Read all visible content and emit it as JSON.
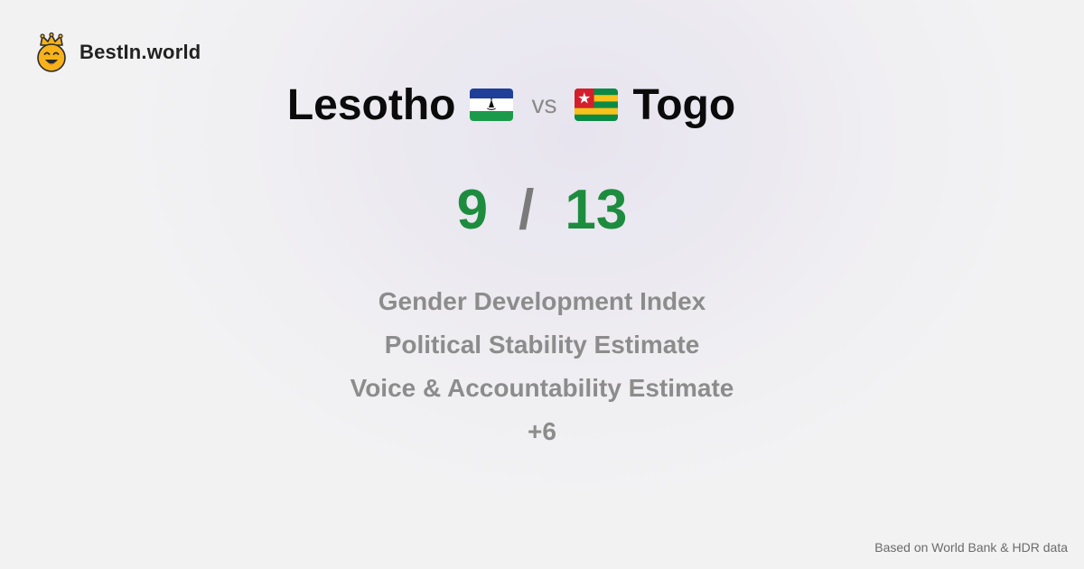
{
  "brand": {
    "name": "BestIn.world",
    "logo_icon": "smiling-face-crown-icon"
  },
  "comparison": {
    "left": {
      "name": "Lesotho",
      "flag_icon": "lesotho-flag-icon",
      "score": "9"
    },
    "vs_label": "vs",
    "right": {
      "name": "Togo",
      "flag_icon": "togo-flag-icon",
      "score": "13"
    },
    "separator": "/"
  },
  "metrics": [
    "Gender Development Index",
    "Political Stability Estimate",
    "Voice & Accountability Estimate",
    "+6"
  ],
  "footer": {
    "source": "Based on World Bank & HDR data"
  },
  "colors": {
    "score": "#1e8c3f",
    "separator": "#7a7a7a",
    "metric_text": "#8c8c8c",
    "lesotho_blue": "#1f3f99",
    "lesotho_green": "#1b9a4b",
    "togo_green": "#0b8a45",
    "togo_yellow": "#f7c21a",
    "togo_red": "#d21f2b"
  }
}
